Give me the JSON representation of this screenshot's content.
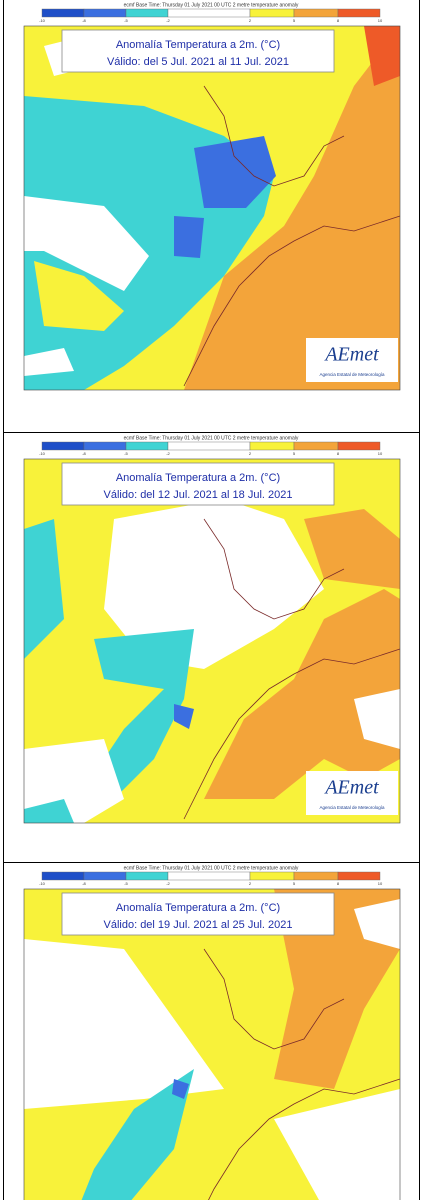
{
  "header": "ecmf Base Time: Thursday 01 July 2021 00 UTC 2 metre temperature anomaly",
  "scale_labels": [
    "-10",
    "-8",
    "-5",
    "-2",
    "2",
    "5",
    "8",
    "10"
  ],
  "title": "Anomalía Temperatura a 2m. (°C)",
  "logo": "AEmet",
  "agency": "Agencia Estatal de Meteorología",
  "panels": [
    {
      "valid": "Válido: del 5 Jul. 2021 al 11 Jul. 2021"
    },
    {
      "valid": "Válido: del 12 Jul. 2021 al 18 Jul. 2021"
    },
    {
      "valid": "Válido: del 19 Jul. 2021 al 25 Jul. 2021"
    }
  ]
}
